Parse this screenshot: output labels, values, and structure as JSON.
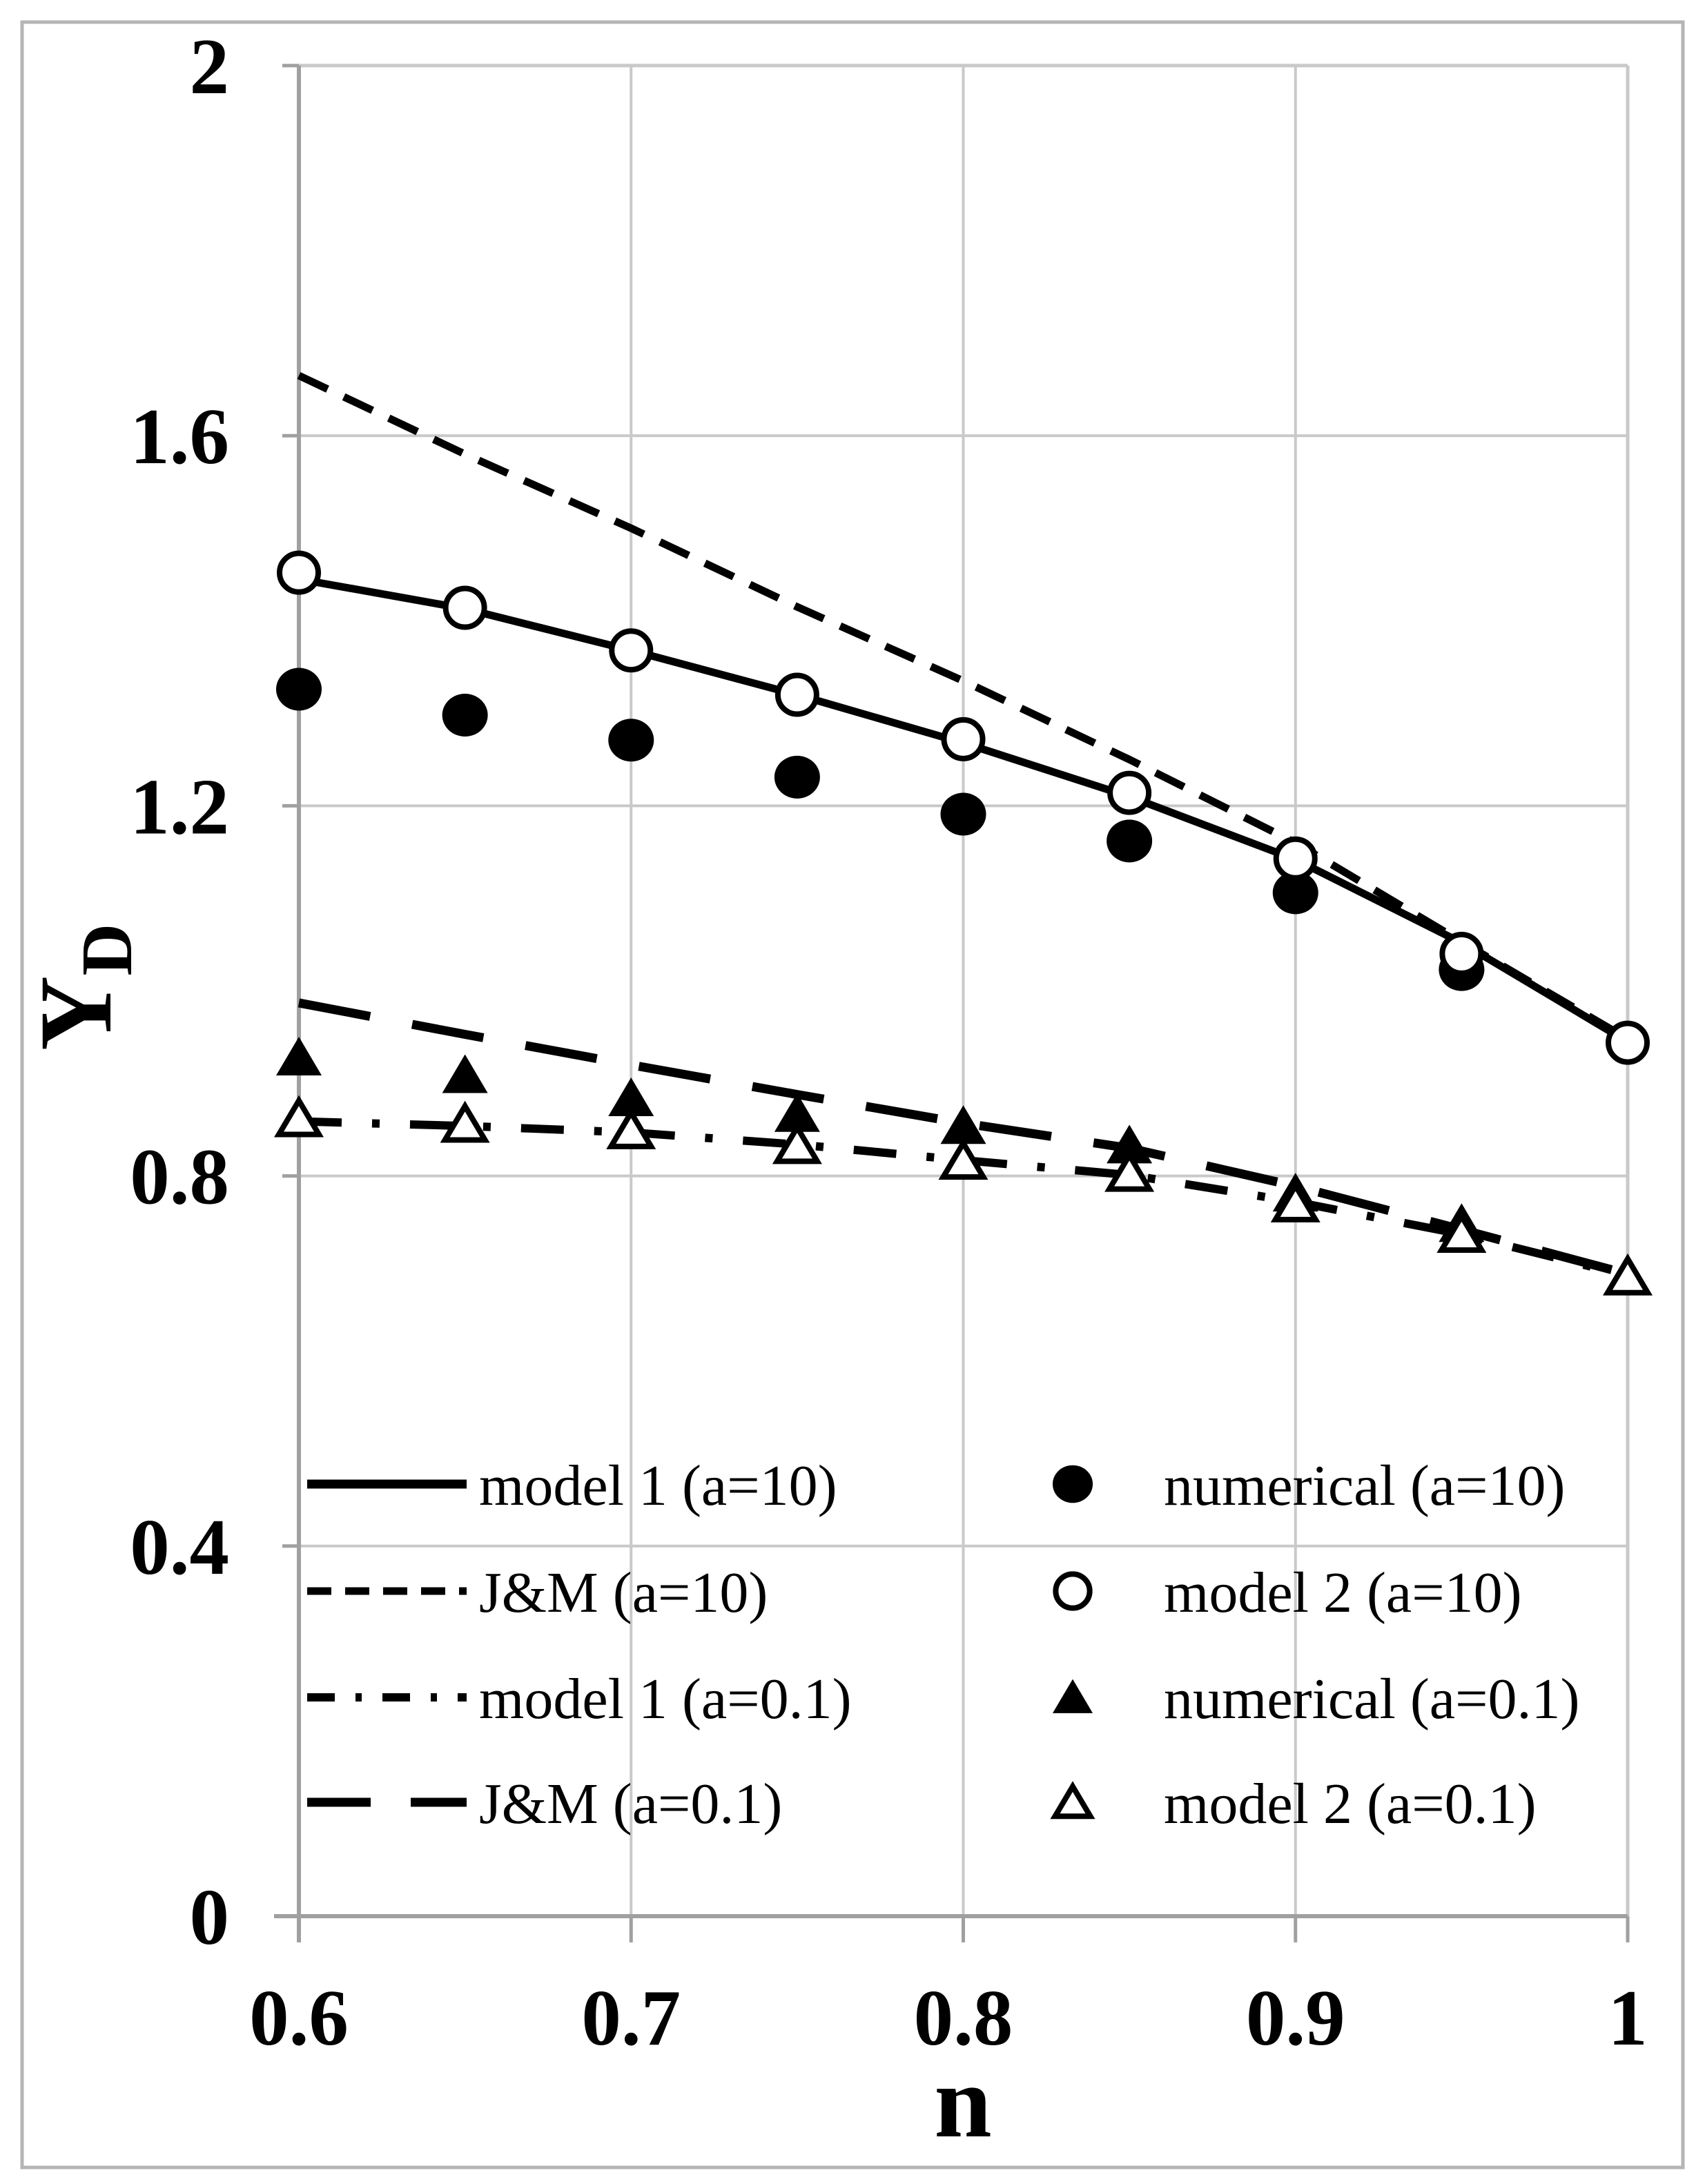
{
  "figure": {
    "background": "#ffffff",
    "frame_color": "#b5b5b5",
    "axis_color": "#a0a0a0",
    "grid_color": "#c9c9c9",
    "data_color": "#000000"
  },
  "chart_data": {
    "type": "line",
    "title": "",
    "xlabel": "n",
    "ylabel": "Y_D",
    "ylabel_main": "Y",
    "ylabel_sub": "D",
    "xlim": [
      0.6,
      1.0
    ],
    "ylim": [
      0,
      2
    ],
    "x_tick_values": [
      0.6,
      0.7,
      0.8,
      0.9,
      1.0
    ],
    "x_tick_labels": [
      "0.6",
      "0.7",
      "0.8",
      "0.9",
      "1"
    ],
    "y_tick_values": [
      0,
      0.4,
      0.8,
      1.2,
      1.6,
      2
    ],
    "y_tick_labels": [
      "0",
      "0.4",
      "0.8",
      "1.2",
      "1.6",
      "2"
    ],
    "grid": true,
    "legend_position": "inside-bottom",
    "x": [
      0.6,
      0.65,
      0.7,
      0.75,
      0.8,
      0.85,
      0.9,
      0.95,
      1.0
    ],
    "series": [
      {
        "name": "model 1 (a=10)",
        "style": "line",
        "line": "solid",
        "x": [
          0.6,
          0.65,
          0.7,
          0.75,
          0.8,
          0.85,
          0.9,
          0.95,
          1.0
        ],
        "values": [
          1.445,
          1.413,
          1.368,
          1.32,
          1.268,
          1.21,
          1.142,
          1.052,
          0.945
        ]
      },
      {
        "name": "J&M (a=10)",
        "style": "line",
        "line": "short-dash",
        "x": [
          0.6,
          0.65,
          0.7,
          0.75,
          0.8,
          0.85,
          0.9,
          0.95,
          1.0
        ],
        "values": [
          1.665,
          1.58,
          1.5,
          1.415,
          1.335,
          1.25,
          1.16,
          1.053,
          0.948
        ]
      },
      {
        "name": "model 1 (a=0.1)",
        "style": "line",
        "line": "dash-dot",
        "x": [
          0.6,
          0.65,
          0.7,
          0.75,
          0.8,
          0.85,
          0.9,
          0.95,
          1.0
        ],
        "values": [
          0.859,
          0.854,
          0.847,
          0.834,
          0.817,
          0.801,
          0.772,
          0.737,
          0.692
        ]
      },
      {
        "name": "J&M (a=0.1)",
        "style": "line",
        "line": "long-dash",
        "x": [
          0.6,
          0.65,
          0.7,
          0.75,
          0.8,
          0.85,
          0.9,
          0.95,
          1.0
        ],
        "values": [
          0.987,
          0.953,
          0.92,
          0.888,
          0.857,
          0.83,
          0.789,
          0.742,
          0.694
        ]
      },
      {
        "name": "numerical (a=10)",
        "style": "marker",
        "marker": "filled-circle",
        "x": [
          0.6,
          0.65,
          0.7,
          0.75,
          0.8,
          0.85,
          0.9,
          0.95
        ],
        "values": [
          1.326,
          1.298,
          1.271,
          1.231,
          1.191,
          1.162,
          1.106,
          1.023
        ]
      },
      {
        "name": "model 2 (a=10)",
        "style": "marker",
        "marker": "open-circle",
        "x": [
          0.6,
          0.65,
          0.7,
          0.75,
          0.8,
          0.85,
          0.9,
          0.95,
          1.0
        ],
        "values": [
          1.452,
          1.414,
          1.368,
          1.32,
          1.272,
          1.214,
          1.143,
          1.04,
          0.944
        ]
      },
      {
        "name": "numerical (a=0.1)",
        "style": "marker",
        "marker": "filled-triangle",
        "x": [
          0.6,
          0.65,
          0.7,
          0.75,
          0.8,
          0.85,
          0.9,
          0.95
        ],
        "values": [
          0.928,
          0.909,
          0.884,
          0.867,
          0.854,
          0.833,
          0.781,
          0.748
        ]
      },
      {
        "name": "model 2 (a=0.1)",
        "style": "marker",
        "marker": "open-triangle",
        "x": [
          0.6,
          0.65,
          0.7,
          0.75,
          0.8,
          0.85,
          0.9,
          0.95,
          1.0
        ],
        "values": [
          0.862,
          0.856,
          0.849,
          0.833,
          0.816,
          0.803,
          0.77,
          0.737,
          0.691
        ]
      }
    ]
  }
}
